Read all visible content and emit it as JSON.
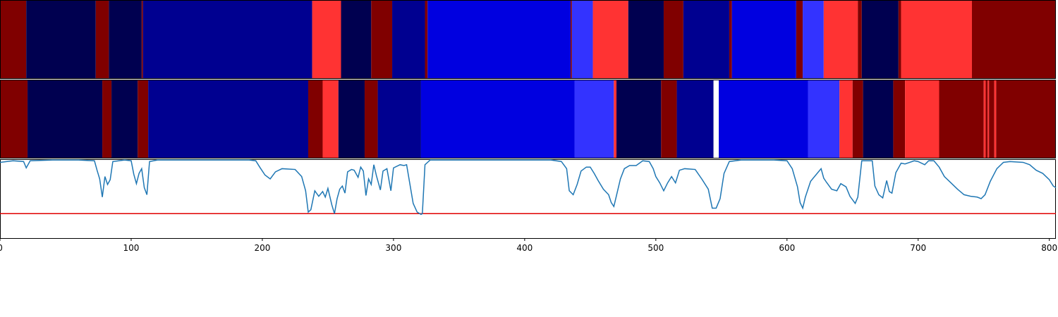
{
  "chart_data": {
    "type": "segments",
    "xlim": [
      0,
      805
    ],
    "xticks": [
      0,
      100,
      200,
      300,
      400,
      500,
      600,
      700,
      800
    ],
    "rows": [
      {
        "segments": [
          {
            "start": 0,
            "end": 20,
            "color": "#800000"
          },
          {
            "start": 20,
            "end": 73,
            "color": "#000050"
          },
          {
            "start": 73,
            "end": 83,
            "color": "#800000"
          },
          {
            "start": 83,
            "end": 108,
            "color": "#000050"
          },
          {
            "start": 108,
            "end": 109,
            "color": "#800000"
          },
          {
            "start": 109,
            "end": 238,
            "color": "#000090"
          },
          {
            "start": 238,
            "end": 260,
            "color": "#ff3333"
          },
          {
            "start": 260,
            "end": 283,
            "color": "#000050"
          },
          {
            "start": 283,
            "end": 299,
            "color": "#800000"
          },
          {
            "start": 299,
            "end": 324,
            "color": "#000090"
          },
          {
            "start": 324,
            "end": 326,
            "color": "#800000"
          },
          {
            "start": 326,
            "end": 435,
            "color": "#0000e0"
          },
          {
            "start": 435,
            "end": 436,
            "color": "#800000"
          },
          {
            "start": 436,
            "end": 452,
            "color": "#3333ff"
          },
          {
            "start": 452,
            "end": 479,
            "color": "#ff3333"
          },
          {
            "start": 479,
            "end": 506,
            "color": "#000050"
          },
          {
            "start": 506,
            "end": 521,
            "color": "#800000"
          },
          {
            "start": 521,
            "end": 556,
            "color": "#000090"
          },
          {
            "start": 556,
            "end": 558,
            "color": "#800000"
          },
          {
            "start": 558,
            "end": 607,
            "color": "#0000e0"
          },
          {
            "start": 607,
            "end": 612,
            "color": "#800000"
          },
          {
            "start": 612,
            "end": 628,
            "color": "#3333ff"
          },
          {
            "start": 628,
            "end": 654,
            "color": "#ff3333"
          },
          {
            "start": 654,
            "end": 657,
            "color": "#800000"
          },
          {
            "start": 657,
            "end": 685,
            "color": "#000050"
          },
          {
            "start": 685,
            "end": 687,
            "color": "#800000"
          },
          {
            "start": 687,
            "end": 741,
            "color": "#ff3333"
          },
          {
            "start": 741,
            "end": 805,
            "color": "#800000"
          }
        ]
      },
      {
        "segments": [
          {
            "start": 0,
            "end": 21,
            "color": "#800000"
          },
          {
            "start": 21,
            "end": 78,
            "color": "#000050"
          },
          {
            "start": 78,
            "end": 85,
            "color": "#800000"
          },
          {
            "start": 85,
            "end": 105,
            "color": "#000050"
          },
          {
            "start": 105,
            "end": 113,
            "color": "#800000"
          },
          {
            "start": 113,
            "end": 235,
            "color": "#000090"
          },
          {
            "start": 235,
            "end": 246,
            "color": "#800000"
          },
          {
            "start": 246,
            "end": 258,
            "color": "#ff3333"
          },
          {
            "start": 258,
            "end": 278,
            "color": "#000050"
          },
          {
            "start": 278,
            "end": 288,
            "color": "#800000"
          },
          {
            "start": 288,
            "end": 321,
            "color": "#000090"
          },
          {
            "start": 321,
            "end": 438,
            "color": "#0000e0"
          },
          {
            "start": 438,
            "end": 468,
            "color": "#3333ff"
          },
          {
            "start": 468,
            "end": 470,
            "color": "#ff3333"
          },
          {
            "start": 470,
            "end": 504,
            "color": "#000050"
          },
          {
            "start": 504,
            "end": 516,
            "color": "#800000"
          },
          {
            "start": 516,
            "end": 544,
            "color": "#000090"
          },
          {
            "start": 544,
            "end": 548,
            "color": "#ffffff"
          },
          {
            "start": 548,
            "end": 616,
            "color": "#0000e0"
          },
          {
            "start": 616,
            "end": 640,
            "color": "#3333ff"
          },
          {
            "start": 640,
            "end": 650,
            "color": "#ff3333"
          },
          {
            "start": 650,
            "end": 658,
            "color": "#800000"
          },
          {
            "start": 658,
            "end": 681,
            "color": "#000050"
          },
          {
            "start": 681,
            "end": 690,
            "color": "#800000"
          },
          {
            "start": 690,
            "end": 716,
            "color": "#ff3333"
          },
          {
            "start": 716,
            "end": 750,
            "color": "#800000"
          },
          {
            "start": 750,
            "end": 751.5,
            "color": "#ff3333"
          },
          {
            "start": 751.5,
            "end": 753,
            "color": "#800000"
          },
          {
            "start": 753,
            "end": 754,
            "color": "#ff3333"
          },
          {
            "start": 754,
            "end": 758,
            "color": "#800000"
          },
          {
            "start": 758,
            "end": 759.5,
            "color": "#ff3333"
          },
          {
            "start": 759.5,
            "end": 805,
            "color": "#800000"
          }
        ]
      }
    ],
    "ylim": [
      0,
      1
    ],
    "threshold": {
      "value": 0.31,
      "color": "#e00000"
    },
    "series": [
      {
        "color": "#1f77b4",
        "x": [
          0,
          10,
          18,
          20,
          23,
          40,
          60,
          72,
          74,
          76,
          78,
          80,
          82,
          84,
          86,
          95,
          100,
          102,
          104,
          106,
          108,
          110,
          112,
          114,
          120,
          160,
          190,
          195,
          198,
          202,
          206,
          210,
          215,
          225,
          230,
          233,
          235,
          237,
          240,
          243,
          246,
          248,
          250,
          253,
          255,
          257,
          259,
          261,
          263,
          265,
          268,
          270,
          273,
          275,
          277,
          279,
          281,
          283,
          285,
          287,
          290,
          292,
          295,
          298,
          300,
          305,
          308,
          310,
          315,
          318,
          321,
          322,
          324,
          328,
          350,
          380,
          420,
          428,
          432,
          434,
          437,
          440,
          443,
          447,
          450,
          453,
          456,
          460,
          464,
          466,
          468,
          470,
          473,
          476,
          480,
          485,
          490,
          495,
          498,
          500,
          503,
          506,
          509,
          512,
          515,
          518,
          522,
          530,
          535,
          540,
          543,
          546,
          549,
          552,
          556,
          565,
          590,
          600,
          604,
          608,
          610,
          612,
          614,
          618,
          622,
          626,
          628,
          630,
          634,
          638,
          641,
          645,
          648,
          652,
          654,
          657,
          665,
          667,
          670,
          673,
          676,
          678,
          680,
          683,
          687,
          690,
          697,
          700,
          705,
          708,
          712,
          716,
          720,
          725,
          730,
          735,
          740,
          745,
          748,
          751,
          755,
          760,
          765,
          770,
          780,
          785,
          790,
          795,
          800,
          803,
          805
        ],
        "values": [
          0.96,
          0.98,
          0.97,
          0.89,
          0.98,
          0.99,
          0.99,
          0.98,
          0.86,
          0.75,
          0.52,
          0.78,
          0.68,
          0.74,
          0.97,
          0.99,
          0.98,
          0.81,
          0.69,
          0.82,
          0.88,
          0.64,
          0.55,
          0.97,
          0.99,
          0.99,
          0.99,
          0.98,
          0.9,
          0.8,
          0.75,
          0.84,
          0.88,
          0.87,
          0.78,
          0.6,
          0.33,
          0.36,
          0.6,
          0.53,
          0.59,
          0.52,
          0.63,
          0.42,
          0.31,
          0.5,
          0.62,
          0.66,
          0.57,
          0.84,
          0.87,
          0.86,
          0.77,
          0.9,
          0.85,
          0.54,
          0.75,
          0.68,
          0.93,
          0.79,
          0.61,
          0.85,
          0.88,
          0.6,
          0.89,
          0.93,
          0.92,
          0.93,
          0.44,
          0.33,
          0.3,
          0.31,
          0.93,
          0.99,
          0.99,
          0.99,
          0.99,
          0.97,
          0.88,
          0.6,
          0.55,
          0.68,
          0.85,
          0.9,
          0.9,
          0.82,
          0.73,
          0.62,
          0.55,
          0.45,
          0.4,
          0.54,
          0.75,
          0.88,
          0.92,
          0.92,
          0.98,
          0.97,
          0.88,
          0.78,
          0.7,
          0.6,
          0.7,
          0.78,
          0.7,
          0.86,
          0.88,
          0.87,
          0.75,
          0.62,
          0.38,
          0.38,
          0.5,
          0.82,
          0.97,
          0.99,
          0.99,
          0.98,
          0.88,
          0.65,
          0.45,
          0.38,
          0.52,
          0.72,
          0.8,
          0.88,
          0.76,
          0.71,
          0.62,
          0.6,
          0.69,
          0.65,
          0.53,
          0.44,
          0.52,
          0.98,
          0.98,
          0.66,
          0.55,
          0.51,
          0.73,
          0.59,
          0.57,
          0.83,
          0.95,
          0.94,
          0.98,
          0.97,
          0.93,
          0.98,
          0.98,
          0.9,
          0.78,
          0.7,
          0.62,
          0.55,
          0.53,
          0.52,
          0.5,
          0.55,
          0.72,
          0.88,
          0.96,
          0.97,
          0.96,
          0.93,
          0.86,
          0.82,
          0.74,
          0.66,
          0.64
        ]
      }
    ]
  }
}
